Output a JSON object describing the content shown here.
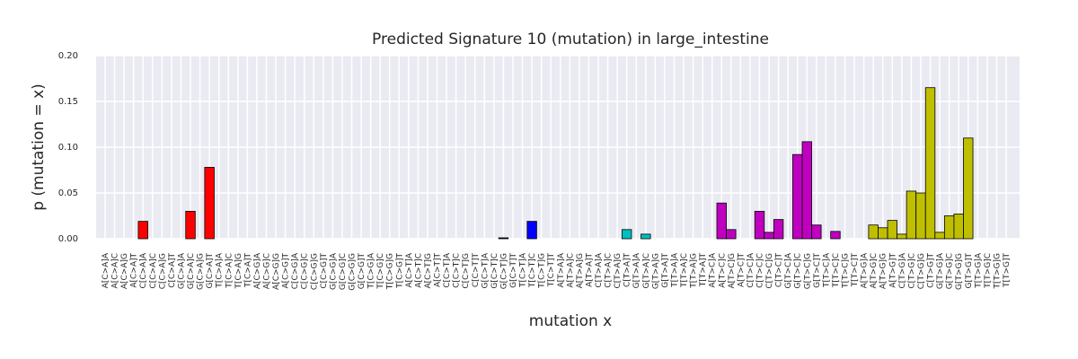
{
  "chart_data": {
    "type": "bar",
    "title": "Predicted Signature 10 (mutation) in large_intestine",
    "xlabel": "mutation x",
    "ylabel": "p (mutation = x)",
    "categories": [
      "A[C>A]A",
      "A[C>A]C",
      "A[C>A]G",
      "A[C>A]T",
      "C[C>A]A",
      "C[C>A]C",
      "C[C>A]G",
      "C[C>A]T",
      "G[C>A]A",
      "G[C>A]C",
      "G[C>A]G",
      "G[C>A]T",
      "T[C>A]A",
      "T[C>A]C",
      "T[C>A]G",
      "T[C>A]T",
      "A[C>G]A",
      "A[C>G]C",
      "A[C>G]G",
      "A[C>G]T",
      "C[C>G]A",
      "C[C>G]C",
      "C[C>G]G",
      "C[C>G]T",
      "G[C>G]A",
      "G[C>G]C",
      "G[C>G]G",
      "G[C>G]T",
      "T[C>G]A",
      "T[C>G]C",
      "T[C>G]G",
      "T[C>G]T",
      "A[C>T]A",
      "A[C>T]C",
      "A[C>T]G",
      "A[C>T]T",
      "C[C>T]A",
      "C[C>T]C",
      "C[C>T]G",
      "C[C>T]T",
      "G[C>T]A",
      "G[C>T]C",
      "G[C>T]G",
      "G[C>T]T",
      "T[C>T]A",
      "T[C>T]C",
      "T[C>T]G",
      "T[C>T]T",
      "A[T>A]A",
      "A[T>A]C",
      "A[T>A]G",
      "A[T>A]T",
      "C[T>A]A",
      "C[T>A]C",
      "C[T>A]G",
      "C[T>A]T",
      "G[T>A]A",
      "G[T>A]C",
      "G[T>A]G",
      "G[T>A]T",
      "T[T>A]A",
      "T[T>A]C",
      "T[T>A]G",
      "T[T>A]T",
      "A[T>C]A",
      "A[T>C]C",
      "A[T>C]G",
      "A[T>C]T",
      "C[T>C]A",
      "C[T>C]C",
      "C[T>C]G",
      "C[T>C]T",
      "G[T>C]A",
      "G[T>C]C",
      "G[T>C]G",
      "G[T>C]T",
      "T[T>C]A",
      "T[T>C]C",
      "T[T>C]G",
      "T[T>C]T",
      "A[T>G]A",
      "A[T>G]C",
      "A[T>G]G",
      "A[T>G]T",
      "C[T>G]A",
      "C[T>G]C",
      "C[T>G]G",
      "C[T>G]T",
      "G[T>G]A",
      "G[T>G]C",
      "G[T>G]G",
      "G[T>G]T",
      "T[T>G]A",
      "T[T>G]C",
      "T[T>G]G",
      "T[T>G]T"
    ],
    "values": [
      0,
      0,
      0,
      0,
      0.019,
      0,
      0,
      0,
      0,
      0.03,
      0,
      0.078,
      0,
      0,
      0,
      0,
      0,
      0,
      0,
      0,
      0,
      0,
      0,
      0,
      0,
      0,
      0,
      0,
      0,
      0,
      0,
      0,
      0,
      0,
      0,
      0,
      0,
      0,
      0,
      0,
      0,
      0,
      0.001,
      0,
      0,
      0.019,
      0,
      0,
      0,
      0,
      0,
      0,
      0,
      0,
      0,
      0.01,
      0,
      0.005,
      0,
      0,
      0,
      0,
      0,
      0,
      0,
      0.039,
      0.01,
      0,
      0,
      0.03,
      0.007,
      0.021,
      0,
      0.092,
      0.106,
      0.015,
      0,
      0.008,
      0,
      0,
      0,
      0.015,
      0.012,
      0.02,
      0.005,
      0.052,
      0.05,
      0.165,
      0.007,
      0.025,
      0.027,
      0.11,
      0,
      0,
      0,
      0
    ],
    "colors": [
      "#ff0000",
      "#ff0000",
      "#ff0000",
      "#ff0000",
      "#ff0000",
      "#ff0000",
      "#ff0000",
      "#ff0000",
      "#ff0000",
      "#ff0000",
      "#ff0000",
      "#ff0000",
      "#ff0000",
      "#ff0000",
      "#ff0000",
      "#ff0000",
      "#000000",
      "#000000",
      "#000000",
      "#000000",
      "#000000",
      "#000000",
      "#000000",
      "#000000",
      "#000000",
      "#000000",
      "#000000",
      "#000000",
      "#000000",
      "#000000",
      "#000000",
      "#000000",
      "#000000",
      "#000000",
      "#000000",
      "#000000",
      "#000000",
      "#000000",
      "#000000",
      "#000000",
      "#000000",
      "#000000",
      "#000000",
      "#0000ff",
      "#0000ff",
      "#0000ff",
      "#0000ff",
      "#0000ff",
      "#00bfbf",
      "#00bfbf",
      "#00bfbf",
      "#00bfbf",
      "#00bfbf",
      "#00bfbf",
      "#00bfbf",
      "#00bfbf",
      "#00bfbf",
      "#00bfbf",
      "#00bfbf",
      "#00bfbf",
      "#00bfbf",
      "#00bfbf",
      "#00bfbf",
      "#00bfbf",
      "#bf00bf",
      "#bf00bf",
      "#bf00bf",
      "#bf00bf",
      "#bf00bf",
      "#bf00bf",
      "#bf00bf",
      "#bf00bf",
      "#bf00bf",
      "#bf00bf",
      "#bf00bf",
      "#bf00bf",
      "#bf00bf",
      "#bf00bf",
      "#bf00bf",
      "#bf00bf",
      "#bfbf00",
      "#bfbf00",
      "#bfbf00",
      "#bfbf00",
      "#bfbf00",
      "#bfbf00",
      "#bfbf00",
      "#bfbf00",
      "#bfbf00",
      "#bfbf00",
      "#bfbf00",
      "#bfbf00",
      "#bfbf00",
      "#bfbf00",
      "#bfbf00",
      "#bfbf00"
    ],
    "ylim": [
      0,
      0.2
    ],
    "yticks": [
      {
        "value": 0,
        "label": "0.00"
      },
      0.05,
      {
        "value": 0.1,
        "label": "0.10"
      },
      0.15,
      {
        "value": 0.2,
        "label": "0.20"
      }
    ],
    "grid": true
  }
}
